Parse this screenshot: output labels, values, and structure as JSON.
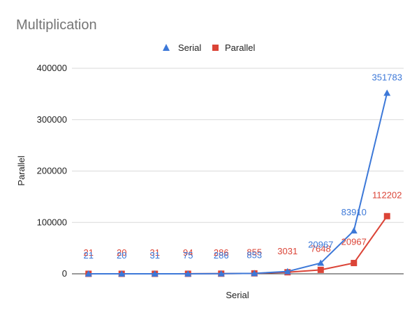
{
  "chart_data": {
    "type": "line",
    "title": "Multiplication",
    "xlabel": "Serial",
    "ylabel": "Parallel",
    "ylim": [
      0,
      400000
    ],
    "yticks": [
      "0",
      "100000",
      "200000",
      "300000",
      "400000"
    ],
    "ytick_values": [
      0,
      100000,
      200000,
      300000,
      400000
    ],
    "grid": true,
    "legend": "top",
    "series": [
      {
        "name": "Serial",
        "color": "#3c78d8",
        "marker": "triangle",
        "values": [
          21,
          20,
          31,
          75,
          286,
          853,
          4500,
          20967,
          83910,
          351783
        ],
        "labels": [
          "21",
          "20",
          "31",
          "75",
          "286",
          "853",
          "",
          "20967",
          "83910",
          "351783"
        ]
      },
      {
        "name": "Parallel",
        "color": "#db4437",
        "marker": "square",
        "values": [
          21,
          20,
          31,
          94,
          286,
          855,
          3031,
          7648,
          20967,
          112202
        ],
        "labels": [
          "21",
          "20",
          "31",
          "94",
          "286",
          "855",
          "3031",
          "7648",
          "20967",
          "112202"
        ]
      }
    ]
  }
}
